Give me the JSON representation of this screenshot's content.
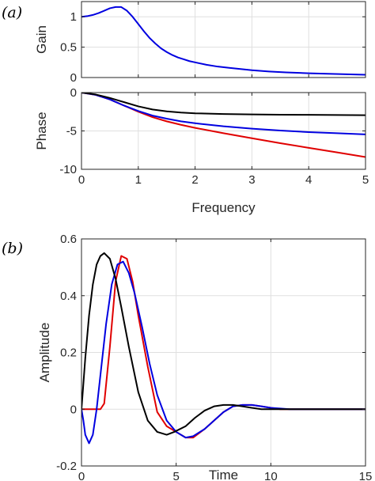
{
  "panel_labels": [
    "(a)",
    "(b)"
  ],
  "chart_data": [
    {
      "type": "line",
      "panel": "(a)",
      "title": "",
      "xlabel": "",
      "ylabel": "Gain",
      "xlim": [
        0,
        5
      ],
      "ylim": [
        0,
        1.25
      ],
      "xticks": [
        0,
        1,
        2,
        3,
        4,
        5
      ],
      "xticklabels": [
        "",
        "",
        "",
        "",
        "",
        ""
      ],
      "yticks": [
        0,
        0.5,
        1
      ],
      "yticklabels": [
        "0",
        "0.5",
        "1"
      ],
      "grid": true,
      "series": [
        {
          "color": "#0000e0",
          "x": [
            0,
            0.1,
            0.2,
            0.3,
            0.4,
            0.5,
            0.6,
            0.7,
            0.8,
            0.9,
            1.0,
            1.1,
            1.2,
            1.3,
            1.4,
            1.5,
            1.6,
            1.7,
            1.8,
            1.9,
            2.0,
            2.2,
            2.4,
            2.6,
            2.8,
            3.0,
            3.3,
            3.6,
            4.0,
            4.4,
            4.8,
            5.0
          ],
          "y": [
            1.0,
            1.01,
            1.03,
            1.06,
            1.1,
            1.14,
            1.16,
            1.16,
            1.1,
            1.0,
            0.88,
            0.76,
            0.65,
            0.56,
            0.48,
            0.42,
            0.37,
            0.33,
            0.3,
            0.27,
            0.25,
            0.21,
            0.18,
            0.16,
            0.14,
            0.12,
            0.1,
            0.085,
            0.07,
            0.06,
            0.05,
            0.045
          ]
        }
      ]
    },
    {
      "type": "line",
      "panel": "(a)",
      "title": "",
      "xlabel": "Frequency",
      "ylabel": "Phase",
      "xlim": [
        0,
        5
      ],
      "ylim": [
        -10,
        0
      ],
      "xticks": [
        0,
        1,
        2,
        3,
        4,
        5
      ],
      "xticklabels": [
        "0",
        "1",
        "2",
        "3",
        "4",
        "5"
      ],
      "yticks": [
        -10,
        -5,
        0
      ],
      "yticklabels": [
        "-10",
        "-5",
        "0"
      ],
      "grid": true,
      "series": [
        {
          "color": "#e00000",
          "x": [
            0,
            0.25,
            0.5,
            0.75,
            1.0,
            1.25,
            1.5,
            1.75,
            2.0,
            2.5,
            3.0,
            3.5,
            4.0,
            4.5,
            5.0
          ],
          "y": [
            0,
            -0.3,
            -0.9,
            -1.7,
            -2.5,
            -3.2,
            -3.75,
            -4.2,
            -4.6,
            -5.3,
            -5.95,
            -6.6,
            -7.2,
            -7.8,
            -8.4
          ]
        },
        {
          "color": "#0000e0",
          "x": [
            0,
            0.25,
            0.5,
            0.75,
            1.0,
            1.25,
            1.5,
            1.75,
            2.0,
            2.5,
            3.0,
            3.5,
            4.0,
            4.5,
            5.0
          ],
          "y": [
            0,
            -0.3,
            -0.9,
            -1.7,
            -2.4,
            -3.0,
            -3.4,
            -3.75,
            -4.0,
            -4.4,
            -4.7,
            -4.95,
            -5.15,
            -5.3,
            -5.45
          ]
        },
        {
          "color": "#000000",
          "x": [
            0,
            0.25,
            0.5,
            0.75,
            1.0,
            1.25,
            1.5,
            1.75,
            2.0,
            2.5,
            3.0,
            3.5,
            4.0,
            4.5,
            5.0
          ],
          "y": [
            0,
            -0.25,
            -0.7,
            -1.25,
            -1.8,
            -2.2,
            -2.45,
            -2.6,
            -2.7,
            -2.8,
            -2.85,
            -2.88,
            -2.9,
            -2.92,
            -2.95
          ]
        }
      ]
    },
    {
      "type": "line",
      "panel": "(b)",
      "title": "",
      "xlabel": "Time",
      "ylabel": "Amplitude",
      "xlim": [
        0,
        15
      ],
      "ylim": [
        -0.2,
        0.6
      ],
      "xticks": [
        0,
        5,
        10,
        15
      ],
      "xticklabels": [
        "0",
        "5",
        "10",
        "15"
      ],
      "yticks": [
        -0.2,
        0,
        0.2,
        0.4,
        0.6
      ],
      "yticklabels": [
        "-0.2",
        "0",
        "0.2",
        "0.4",
        "0.6"
      ],
      "grid": true,
      "series": [
        {
          "color": "#e00000",
          "x": [
            0,
            0.5,
            1.0,
            1.2,
            1.5,
            1.8,
            2.1,
            2.4,
            2.7,
            3.0,
            3.5,
            4.0,
            4.5,
            5.0,
            5.5,
            5.9,
            6.5,
            7.0,
            7.5,
            8.0,
            8.5,
            9.0,
            9.5,
            10.0,
            10.5,
            11.0,
            12.0,
            13.0,
            15.0
          ],
          "y": [
            0,
            0,
            0,
            0.02,
            0.22,
            0.45,
            0.54,
            0.53,
            0.45,
            0.33,
            0.15,
            -0.01,
            -0.06,
            -0.08,
            -0.1,
            -0.1,
            -0.07,
            -0.04,
            -0.01,
            0.01,
            0.015,
            0.015,
            0.01,
            0.005,
            0.0,
            0.0,
            0.0,
            0.0,
            0.0
          ]
        },
        {
          "color": "#0000e0",
          "x": [
            0,
            0.1,
            0.2,
            0.4,
            0.6,
            0.8,
            1.0,
            1.3,
            1.6,
            1.9,
            2.2,
            2.5,
            2.8,
            3.2,
            3.6,
            4.0,
            4.5,
            5.0,
            5.5,
            5.9,
            6.5,
            7.0,
            7.5,
            8.0,
            8.5,
            9.0,
            9.5,
            10.0,
            11.0,
            12.0,
            13.0,
            15.0
          ],
          "y": [
            0,
            -0.04,
            -0.09,
            -0.12,
            -0.09,
            0.0,
            0.12,
            0.3,
            0.44,
            0.51,
            0.52,
            0.48,
            0.41,
            0.29,
            0.16,
            0.05,
            -0.04,
            -0.08,
            -0.1,
            -0.095,
            -0.07,
            -0.04,
            -0.01,
            0.01,
            0.015,
            0.015,
            0.01,
            0.005,
            0.0,
            0.0,
            0.0,
            0.0
          ]
        },
        {
          "color": "#000000",
          "x": [
            0,
            0.2,
            0.4,
            0.6,
            0.8,
            1.0,
            1.2,
            1.5,
            1.8,
            2.1,
            2.5,
            3.0,
            3.5,
            4.0,
            4.5,
            4.9,
            5.5,
            6.0,
            6.5,
            7.0,
            7.5,
            8.0,
            8.5,
            9.0,
            9.5,
            10.0,
            11.0,
            12.0,
            13.0,
            15.0
          ],
          "y": [
            0,
            0.18,
            0.33,
            0.44,
            0.51,
            0.54,
            0.55,
            0.53,
            0.46,
            0.36,
            0.22,
            0.06,
            -0.04,
            -0.08,
            -0.09,
            -0.08,
            -0.06,
            -0.03,
            -0.005,
            0.01,
            0.015,
            0.015,
            0.01,
            0.005,
            0.0,
            0.0,
            0.0,
            0.0,
            0.0,
            0.0
          ]
        }
      ]
    }
  ]
}
